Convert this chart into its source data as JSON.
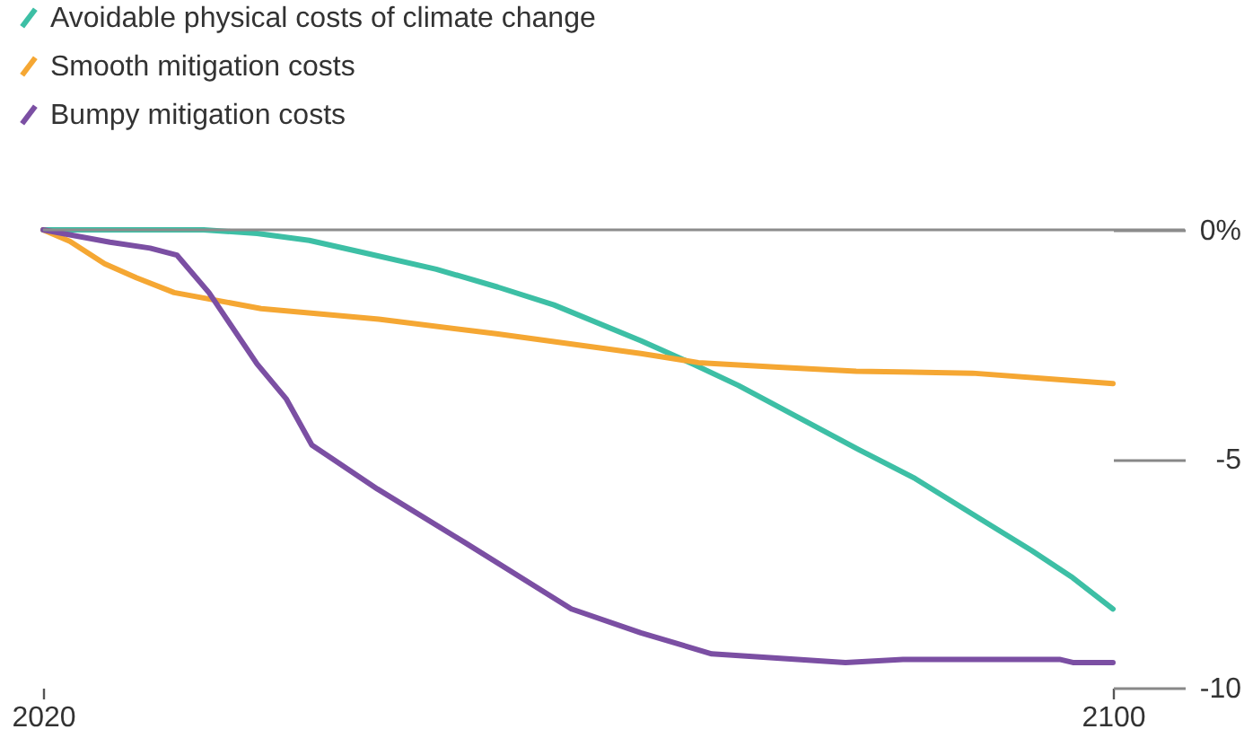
{
  "chart_data": {
    "type": "line",
    "legend": "top left",
    "xlim": [
      2020,
      2100
    ],
    "xticks": [
      2020,
      2100
    ],
    "ylim": [
      -10,
      0
    ],
    "yticks": [
      {
        "value": 0,
        "label": "0%"
      },
      -5,
      -10
    ],
    "ref_lines": [
      {
        "axis": "y",
        "value": 0,
        "color": "#8c8c8c"
      }
    ],
    "series": [
      {
        "name": "Avoidable physical costs of climate change",
        "color": "#3dbfa5",
        "x": [
          2020,
          2032,
          2036,
          2039.9,
          2044,
          2049.4,
          2054,
          2058.2,
          2064.7,
          2068.6,
          2072,
          2076.5,
          2081,
          2085.2,
          2090,
          2093.9,
          2097,
          2100
        ],
        "values": [
          0,
          0,
          -0.08,
          -0.23,
          -0.5,
          -0.86,
          -1.25,
          -1.64,
          -2.42,
          -2.93,
          -3.4,
          -4.1,
          -4.8,
          -5.43,
          -6.3,
          -7.0,
          -7.6,
          -8.28
        ]
      },
      {
        "name": "Smooth mitigation costs",
        "color": "#f5a733",
        "x": [
          2020,
          2022,
          2024.6,
          2027,
          2029.8,
          2036.3,
          2045.1,
          2053.9,
          2064.7,
          2069,
          2075,
          2080.8,
          2089.5,
          2095,
          2100
        ],
        "values": [
          0,
          -0.25,
          -0.74,
          -1.05,
          -1.37,
          -1.72,
          -1.95,
          -2.27,
          -2.7,
          -2.9,
          -3.0,
          -3.09,
          -3.13,
          -3.25,
          -3.36
        ]
      },
      {
        "name": "Bumpy mitigation costs",
        "color": "#7b4fa3",
        "x": [
          2020,
          2025,
          2028,
          2030,
          2032.4,
          2036,
          2038.2,
          2040.1,
          2045,
          2051.6,
          2059.5,
          2064.7,
          2070,
          2080,
          2084.3,
          2096,
          2097,
          2100
        ],
        "values": [
          0,
          -0.27,
          -0.4,
          -0.55,
          -1.37,
          -2.93,
          -3.7,
          -4.7,
          -5.66,
          -6.84,
          -8.28,
          -8.8,
          -9.26,
          -9.45,
          -9.38,
          -9.38,
          -9.45,
          -9.45
        ]
      }
    ]
  }
}
